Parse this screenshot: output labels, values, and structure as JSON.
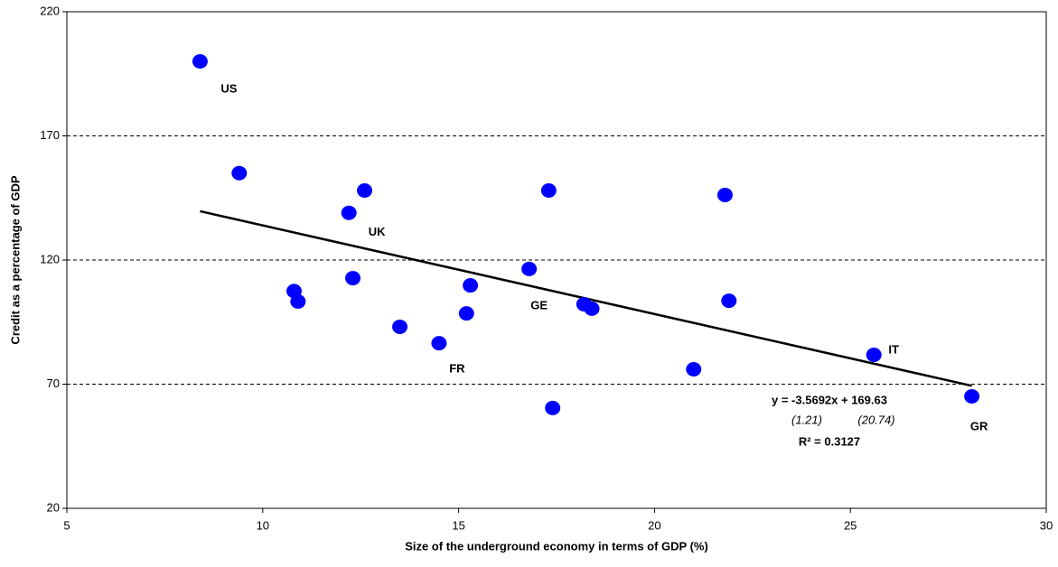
{
  "chart_data": {
    "type": "scatter",
    "x_label": "Size of the underground economy in terms of GDP  (%)",
    "y_label": "Credit as a percentage of GDP",
    "x": [
      8.4,
      9.4,
      10.8,
      10.9,
      12.2,
      12.6,
      12.3,
      13.5,
      14.5,
      15.2,
      15.3,
      16.8,
      17.3,
      17.4,
      18.2,
      18.4,
      21.0,
      21.8,
      21.9,
      25.6,
      28.1
    ],
    "values": [
      200,
      155,
      107.5,
      103.3,
      139,
      148,
      112.7,
      93.1,
      86.5,
      98.5,
      109.8,
      116.4,
      148,
      60.4,
      102.2,
      100.4,
      76,
      146.2,
      103.6,
      81.8,
      65.1
    ],
    "labels": [
      "US",
      null,
      null,
      null,
      "UK",
      null,
      null,
      null,
      "FR",
      null,
      null,
      "GE",
      null,
      null,
      null,
      null,
      null,
      null,
      null,
      "IT",
      "GR"
    ],
    "color": "#0000ff",
    "trend": {
      "slope": -3.5692,
      "intercept": 169.63,
      "color": "#000000"
    },
    "annotations": {
      "equation": "y = -3.5692x + 169.63",
      "se_slope": "(1.21)",
      "se_intercept": "(20.74)",
      "r2": "R² = 0.3127"
    },
    "xlim": [
      5,
      30
    ],
    "xticks": [
      5,
      10,
      15,
      20,
      25,
      30
    ],
    "ylim": [
      20,
      220
    ],
    "yticks": [
      20,
      70,
      120,
      170,
      220
    ],
    "grid": true
  }
}
